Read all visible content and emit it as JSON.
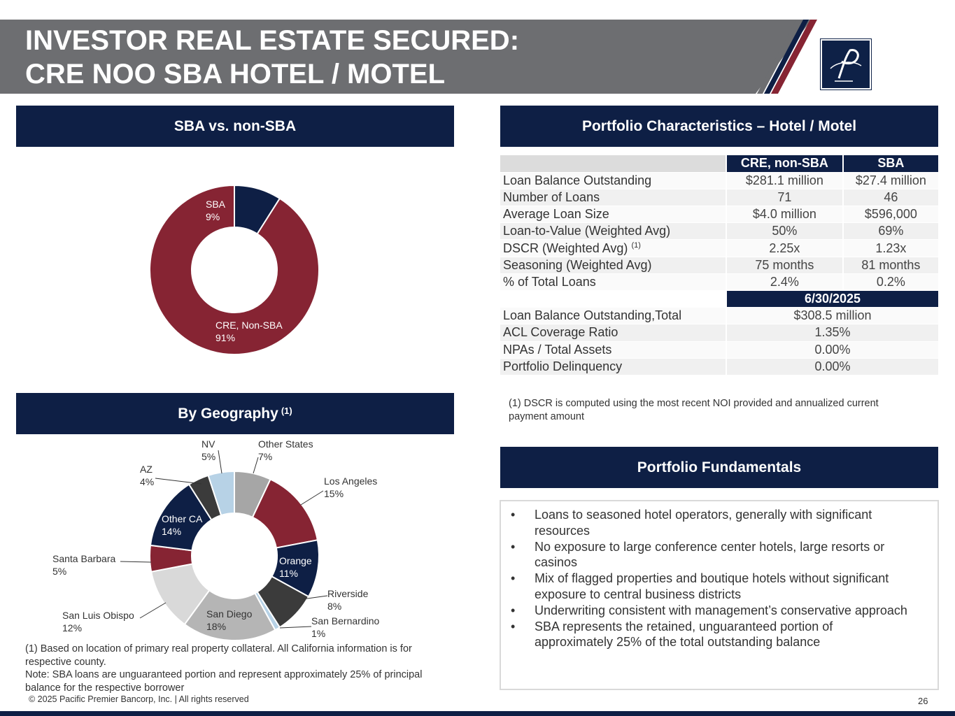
{
  "title": {
    "line1": "INVESTOR REAL ESTATE SECURED:",
    "line2": "CRE NOO SBA HOTEL / MOTEL"
  },
  "colors": {
    "navy": "#0e1f45",
    "maroon": "#862433",
    "banner_gray": "#6d6e71"
  },
  "sections": {
    "sba_vs_non_sba": "SBA vs. non-SBA",
    "geography": "By Geography",
    "geography_note_ref": "(1)",
    "portfolio_characteristics": "Portfolio Characteristics – Hotel / Motel",
    "portfolio_fundamentals": "Portfolio Fundamentals"
  },
  "chart_data": [
    {
      "type": "pie",
      "donut": true,
      "categories": [
        "SBA",
        "CRE, Non-SBA"
      ],
      "values": [
        9,
        91
      ],
      "labels": [
        "9%",
        "91%"
      ],
      "colors": [
        "#0e1f45",
        "#862433"
      ]
    },
    {
      "type": "pie",
      "donut": true,
      "categories": [
        "Other States",
        "Los Angeles",
        "Orange",
        "Riverside",
        "San Bernardino",
        "San Diego",
        "San Luis Obispo",
        "Santa Barbara",
        "Other CA",
        "AZ",
        "NV"
      ],
      "values": [
        7,
        15,
        11,
        8,
        1,
        18,
        12,
        5,
        14,
        4,
        5
      ],
      "labels": [
        "7%",
        "15%",
        "11%",
        "8%",
        "1%",
        "18%",
        "12%",
        "5%",
        "14%",
        "4%",
        "5%"
      ],
      "colors": [
        "#a6a6a6",
        "#862433",
        "#0e1f45",
        "#3b3b3b",
        "#b7d2e6",
        "#b5b5b5",
        "#d9d9d9",
        "#862433",
        "#0e1f45",
        "#3b3b3b",
        "#b7d2e6"
      ]
    }
  ],
  "table": {
    "col_headers": [
      "CRE, non-SBA",
      "SBA"
    ],
    "rows": [
      {
        "label": "Loan Balance Outstanding",
        "c1": "$281.1 million",
        "c2": "$27.4 million"
      },
      {
        "label": "Number of Loans",
        "c1": "71",
        "c2": "46"
      },
      {
        "label": "Average Loan Size",
        "c1": "$4.0 million",
        "c2": "$596,000"
      },
      {
        "label": "Loan-to-Value (Weighted Avg)",
        "c1": "50%",
        "c2": "69%"
      },
      {
        "label": "DSCR (Weighted Avg)",
        "label_sup": "(1)",
        "c1": "2.25x",
        "c2": "1.23x"
      },
      {
        "label": "Seasoning (Weighted Avg)",
        "c1": "75 months",
        "c2": "81 months"
      },
      {
        "label": "% of Total Loans",
        "c1": "2.4%",
        "c2": "0.2%"
      }
    ],
    "date_header": "6/30/2025",
    "total_rows": [
      {
        "label": "Loan Balance Outstanding,Total",
        "value": "$308.5 million"
      },
      {
        "label": "ACL Coverage Ratio",
        "value": "1.35%"
      },
      {
        "label": "NPAs / Total Assets",
        "value": "0.00%"
      },
      {
        "label": "Portfolio Delinquency",
        "value": "0.00%"
      }
    ]
  },
  "dscr_footnote": {
    "line1": "(1) DSCR is computed using the most recent NOI provided and annualized current",
    "line2": "payment amount"
  },
  "fundamentals": [
    {
      "line1": "Loans to seasoned hotel operators, generally with significant",
      "line2": "resources"
    },
    {
      "line1": "No exposure to large conference center hotels, large resorts or",
      "line2": "casinos"
    },
    {
      "line1": "Mix of flagged properties and boutique hotels without significant",
      "line2": "exposure to central business districts"
    },
    {
      "line1": "Underwriting consistent with management’s conservative approach",
      "line2": ""
    },
    {
      "line1": "SBA represents the retained, unguaranteed portion of",
      "line2": "approximately 25% of the total outstanding balance"
    }
  ],
  "geo_footnote": {
    "line1": "(1) Based on location of primary real property collateral. All California information is for",
    "line2": "respective county.",
    "line3": "Note: SBA loans are unguaranteed portion and represent approximately 25% of principal",
    "line4": "balance for the respective borrower"
  },
  "copyright": "© 2025 Pacific Premier Bancorp, Inc. | All rights reserved",
  "page_number": "26"
}
